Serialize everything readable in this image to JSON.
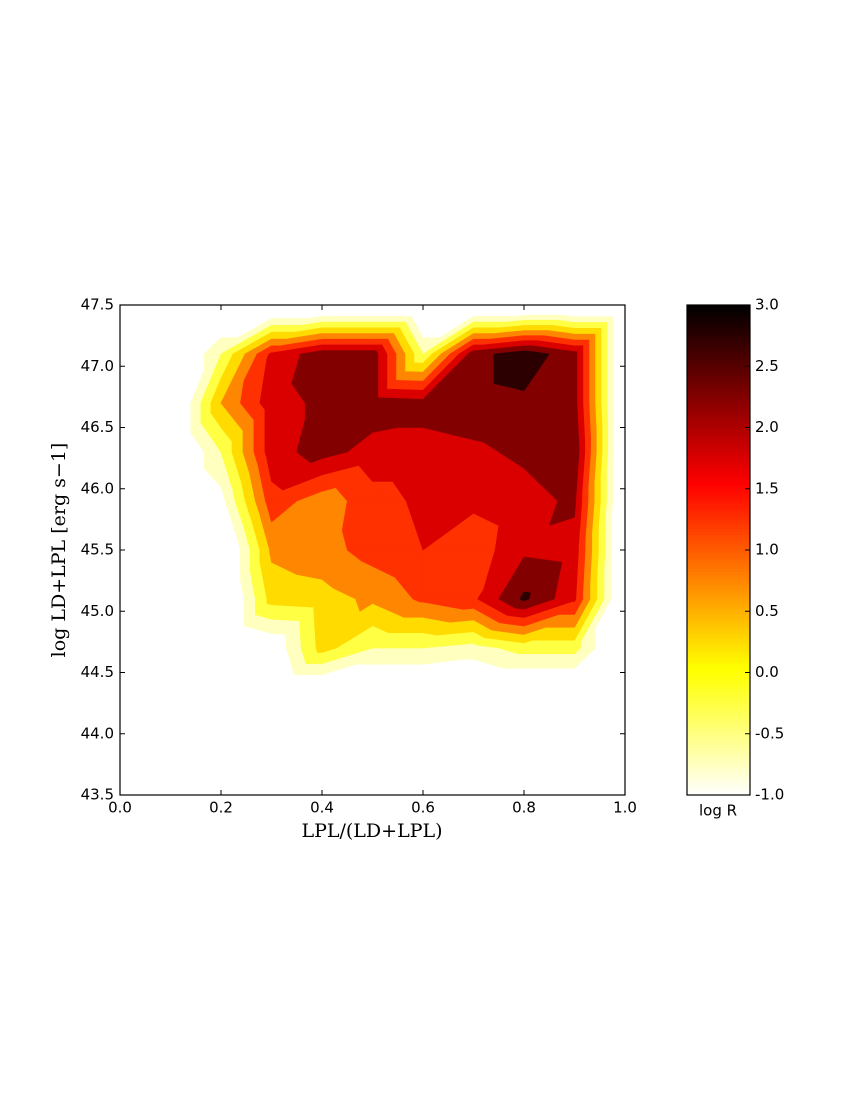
{
  "chart_data": {
    "type": "contour",
    "xlabel": "LPL/(LD+LPL)",
    "ylabel": "log LD+LPL [erg s−1]",
    "colorbar_label": "log R",
    "colormap": "hot_r",
    "x": [
      0.1,
      0.2,
      0.3,
      0.4,
      0.5,
      0.6,
      0.7,
      0.8,
      0.9,
      1.0
    ],
    "y": [
      44.3,
      44.7,
      45.1,
      45.5,
      45.9,
      46.3,
      46.7,
      47.1,
      47.5
    ],
    "z": [
      [
        -2,
        -2,
        -2,
        -2,
        -2,
        -2,
        -2,
        -2,
        -2,
        -2
      ],
      [
        -2,
        -2,
        -1.5,
        0.2,
        -0.5,
        -0.5,
        -0.7,
        -0.3,
        -0.3,
        -2
      ],
      [
        -2,
        -2,
        0.2,
        0.3,
        0.6,
        1.1,
        1.4,
        2.6,
        1.6,
        -2
      ],
      [
        -2,
        -2,
        0.6,
        0.8,
        1.2,
        1.5,
        1.2,
        1.9,
        1.8,
        -2
      ],
      [
        -2,
        -1.2,
        1.3,
        0.7,
        1.3,
        1.6,
        1.6,
        1.8,
        2.1,
        -2
      ],
      [
        -2,
        -0.5,
        1.8,
        2.2,
        1.8,
        1.8,
        1.9,
        2.1,
        2.4,
        -2
      ],
      [
        -2,
        0.5,
        1.8,
        2.1,
        2.3,
        2.2,
        2.3,
        2.4,
        2.2,
        -2
      ],
      [
        -2,
        -0.5,
        1.6,
        2.3,
        2.3,
        -0.5,
        2.3,
        2.8,
        2.2,
        -2
      ],
      [
        -2,
        -2,
        -2,
        -2,
        -2,
        -2,
        -2,
        -2,
        -2,
        -2
      ]
    ],
    "levels": [
      {
        "value": -1.0,
        "label": "-1.0"
      },
      {
        "value": -0.5,
        "label": "-0.5"
      },
      {
        "value": 0.0,
        "label": "0.0"
      },
      {
        "value": 0.5,
        "label": "0.5"
      },
      {
        "value": 1.0,
        "label": "1.0"
      },
      {
        "value": 1.5,
        "label": "1.5"
      },
      {
        "value": 2.0,
        "label": "2.0"
      },
      {
        "value": 2.5,
        "label": "2.5"
      },
      {
        "value": 3.0,
        "label": "3.0"
      }
    ],
    "xlim": [
      0.0,
      1.0
    ],
    "ylim": [
      43.5,
      47.5
    ],
    "xticks": [
      {
        "value": 0.0,
        "label": "0.0"
      },
      {
        "value": 0.2,
        "label": "0.2"
      },
      {
        "value": 0.4,
        "label": "0.4"
      },
      {
        "value": 0.6,
        "label": "0.6"
      },
      {
        "value": 0.8,
        "label": "0.8"
      },
      {
        "value": 1.0,
        "label": "1.0"
      }
    ],
    "yticks": [
      {
        "value": 43.5,
        "label": "43.5"
      },
      {
        "value": 44.0,
        "label": "44.0"
      },
      {
        "value": 44.5,
        "label": "44.5"
      },
      {
        "value": 45.0,
        "label": "45.0"
      },
      {
        "value": 45.5,
        "label": "45.5"
      },
      {
        "value": 46.0,
        "label": "46.0"
      },
      {
        "value": 46.5,
        "label": "46.5"
      },
      {
        "value": 47.0,
        "label": "47.0"
      },
      {
        "value": 47.5,
        "label": "47.5"
      }
    ]
  }
}
